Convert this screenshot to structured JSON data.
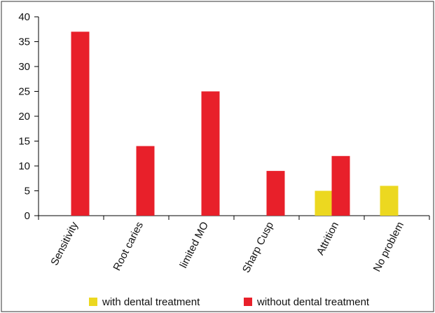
{
  "chart_data": {
    "type": "bar",
    "categories": [
      "Sensitivity",
      "Root caries",
      "limited MO",
      "Sharp Cusp",
      "Attrition",
      "No problem"
    ],
    "series": [
      {
        "name": "with dental treatment",
        "color": "#ecd820",
        "values": [
          0,
          0,
          0,
          0,
          5,
          6
        ]
      },
      {
        "name": "without dental treatment",
        "color": "#e8202a",
        "values": [
          37,
          14,
          25,
          9,
          12,
          0
        ]
      }
    ],
    "yticks": [
      0,
      5,
      10,
      15,
      20,
      25,
      30,
      35,
      40
    ],
    "ylim": [
      0,
      40
    ],
    "grid": false,
    "legend_position": "bottom"
  }
}
